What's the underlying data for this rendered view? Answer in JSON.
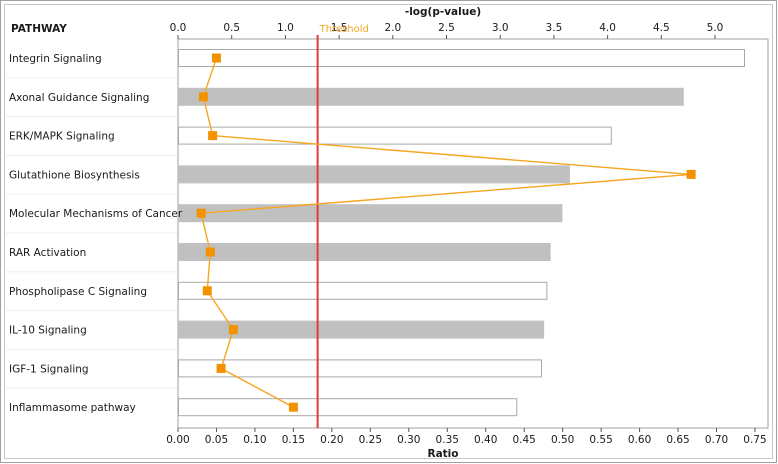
{
  "chart_data": {
    "type": "bar",
    "header": "PATHWAY",
    "top_axis": {
      "title": "-log(p-value)",
      "range": [
        0,
        5.5
      ],
      "ticks": [
        "0.0",
        "0.5",
        "1.0",
        "1.5",
        "2.0",
        "2.5",
        "3.0",
        "3.5",
        "4.0",
        "4.5",
        "5.0"
      ]
    },
    "bottom_axis": {
      "title": "Ratio",
      "range": [
        0,
        0.77
      ],
      "ticks": [
        "0.00",
        "0.05",
        "0.10",
        "0.15",
        "0.20",
        "0.25",
        "0.30",
        "0.35",
        "0.40",
        "0.45",
        "0.50",
        "0.55",
        "0.60",
        "0.65",
        "0.70",
        "0.75"
      ]
    },
    "threshold": {
      "label": "Threshold",
      "value": 1.3
    },
    "categories": [
      "Integrin Signaling",
      "Axonal Guidance Signaling",
      "ERK/MAPK Signaling",
      "Glutathione Biosynthesis",
      "Molecular Mechanisms of Cancer",
      "RAR Activation",
      "Phospholipase C Signaling",
      "IL-10 Signaling",
      "IGF-1 Signaling",
      "Inflammasome pathway"
    ],
    "bars": {
      "values": [
        5.27,
        4.7,
        4.03,
        3.64,
        3.57,
        3.46,
        3.43,
        3.4,
        3.38,
        3.15
      ],
      "fill": [
        "white",
        "gray",
        "white",
        "gray",
        "gray",
        "gray",
        "white",
        "gray",
        "white",
        "white"
      ]
    },
    "ratio_series": {
      "values": [
        0.05,
        0.033,
        0.045,
        0.667,
        0.03,
        0.042,
        0.038,
        0.072,
        0.056,
        0.15
      ]
    },
    "colors": {
      "bar_gray": "#c0c0c0",
      "bar_white": "#ffffff",
      "bar_outline": "#a8a8a8",
      "line": "#f5a623",
      "marker": "#f39200",
      "threshold": "#e03a3a",
      "grid": "#e2e2e2",
      "frame": "#a0a0a0"
    }
  }
}
